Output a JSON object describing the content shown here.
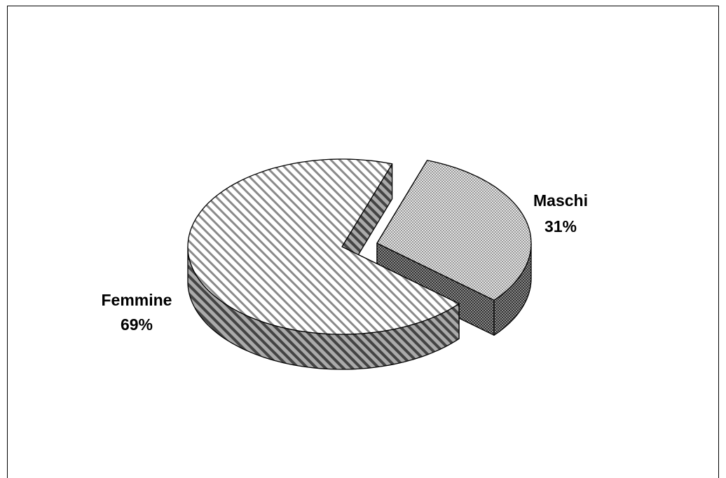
{
  "chart_data": {
    "type": "pie3d",
    "categories": [
      "Maschi",
      "Femmine"
    ],
    "values": [
      31,
      69
    ],
    "value_labels": [
      "31%",
      "69%"
    ]
  }
}
